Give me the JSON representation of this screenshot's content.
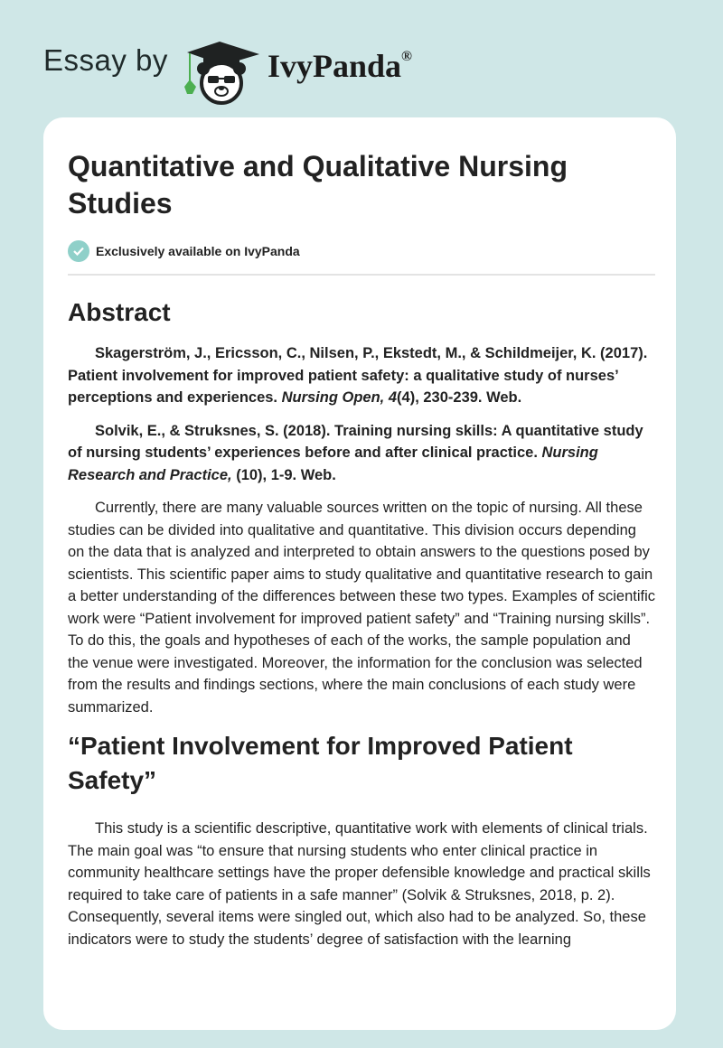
{
  "header": {
    "essay_by": "Essay by",
    "brand": "IvyPanda",
    "registered": "®"
  },
  "colors": {
    "background": "#cfe7e7",
    "card": "#ffffff",
    "check_badge": "#8fd0c9",
    "ivy_leaf": "#4caf50"
  },
  "article": {
    "title": "Quantitative and Qualitative Nursing Studies",
    "exclusive_label": "Exclusively available on IvyPanda",
    "sections": [
      {
        "heading": "Abstract"
      },
      {
        "heading": "“Patient Involvement for Improved Patient Safety”"
      }
    ],
    "references": [
      {
        "pre": "Skagerström, J., Ericsson, C., Nilsen, P., Ekstedt, M., & Schildmeijer, K. (2017). Patient involvement for improved patient safety: a qualitative study of nurses’ perceptions and experiences. ",
        "italic": "Nursing Open, 4",
        "post": "(4), 230-239. Web."
      },
      {
        "pre": "Solvik, E., & Struksnes, S. (2018). Training nursing skills: A quantitative study of nursing students’ experiences before and after clinical practice. ",
        "italic": "Nursing Research and Practice,",
        "post": " (10), 1-9. Web."
      }
    ],
    "paragraphs": [
      "Currently, there are many valuable sources written on the topic of nursing. All these studies can be divided into qualitative and quantitative. This division occurs depending on the data that is analyzed and interpreted to obtain answers to the questions posed by scientists. This scientific paper aims to study qualitative and quantitative research to gain a better understanding of the differences between these two types. Examples of scientific work were “Patient involvement for improved patient safety” and “Training nursing skills”. To do this, the goals and hypotheses of each of the works, the sample population and the venue were investigated. Moreover, the information for the conclusion was selected from the results and findings sections, where the main conclusions of each study were summarized.",
      "This study is a scientific descriptive, quantitative work with elements of clinical trials. The main goal was “to ensure that nursing students who enter clinical practice in community healthcare settings have the proper defensible knowledge and practical skills required to take care of patients in a safe manner” (Solvik & Struksnes, 2018, p. 2). Consequently, several items were singled out, which also had to be analyzed. So, these indicators were to study the students’ degree of satisfaction with the learning"
    ]
  }
}
